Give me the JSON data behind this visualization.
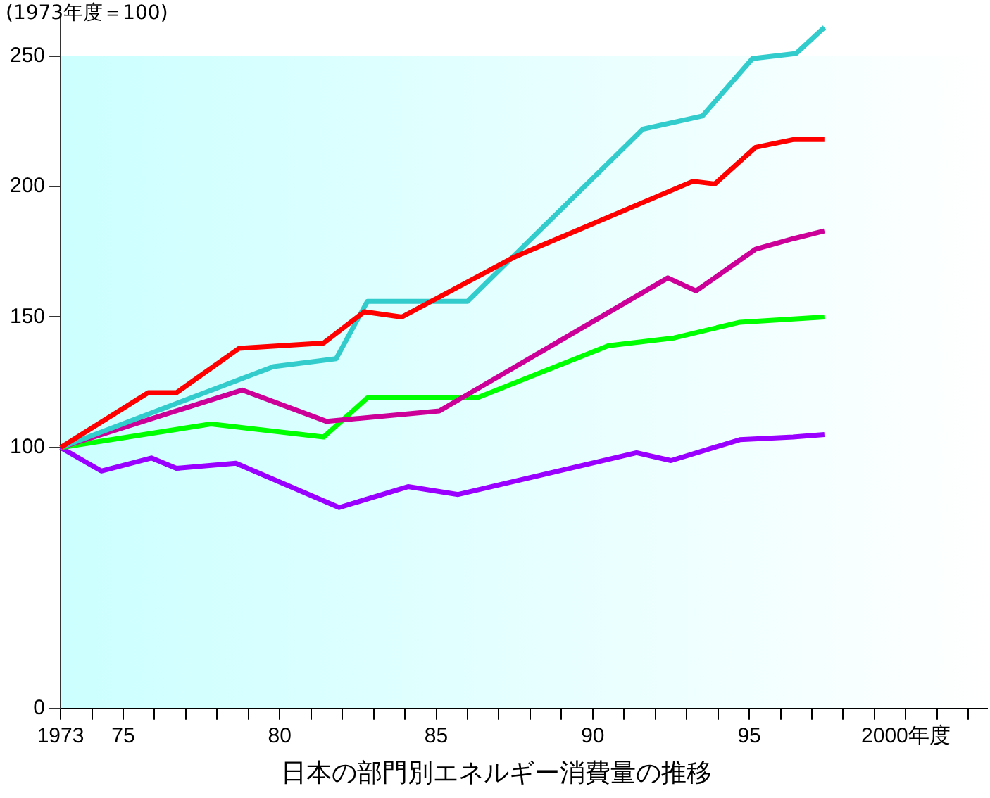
{
  "chart_data": {
    "type": "line",
    "title": "日本の部門別エネルギー消費量の推移",
    "ylabel": "(1973年度＝100)",
    "xlim": [
      1973,
      2002.6
    ],
    "ylim": [
      0,
      265
    ],
    "xticks": [
      {
        "value": 1973,
        "label": "1973"
      },
      {
        "value": 1974,
        "label": null
      },
      {
        "value": 1975,
        "label": "75"
      },
      {
        "value": 1976,
        "label": null
      },
      {
        "value": 1977,
        "label": null
      },
      {
        "value": 1978,
        "label": null
      },
      {
        "value": 1979,
        "label": null
      },
      {
        "value": 1980,
        "label": "80"
      },
      {
        "value": 1981,
        "label": null
      },
      {
        "value": 1982,
        "label": null
      },
      {
        "value": 1983,
        "label": null
      },
      {
        "value": 1984,
        "label": null
      },
      {
        "value": 1985,
        "label": "85"
      },
      {
        "value": 1986,
        "label": null
      },
      {
        "value": 1987,
        "label": null
      },
      {
        "value": 1988,
        "label": null
      },
      {
        "value": 1989,
        "label": null
      },
      {
        "value": 1990,
        "label": "90"
      },
      {
        "value": 1991,
        "label": null
      },
      {
        "value": 1992,
        "label": null
      },
      {
        "value": 1993,
        "label": null
      },
      {
        "value": 1994,
        "label": null
      },
      {
        "value": 1995,
        "label": "95"
      },
      {
        "value": 1996,
        "label": null
      },
      {
        "value": 1997,
        "label": null
      },
      {
        "value": 1998,
        "label": null
      },
      {
        "value": 1999,
        "label": null
      },
      {
        "value": 2000,
        "label": "2000年度"
      },
      {
        "value": 2001,
        "label": null
      },
      {
        "value": 2002,
        "label": null
      }
    ],
    "yticks": [
      0,
      100,
      150,
      200,
      250
    ],
    "grid": false,
    "legend": false,
    "marker": "none",
    "line_style": "solid",
    "series": [
      {
        "color": "#ff0000",
        "x": [
          1973,
          1975.8,
          1976.7,
          1978.7,
          1981.4,
          1982.7,
          1983.9,
          1987.5,
          1993.2,
          1993.9,
          1995.2,
          1996.4,
          1997.4
        ],
        "values": [
          100,
          121,
          121,
          138,
          140,
          152,
          150,
          173,
          202,
          201,
          215,
          218,
          218
        ]
      },
      {
        "color": "#33cccc",
        "x": [
          1973,
          1979.8,
          1981.8,
          1982.8,
          1986.0,
          1991.6,
          1993.5,
          1995.1,
          1996.5,
          1997.4
        ],
        "values": [
          100,
          131,
          134,
          156,
          156,
          222,
          227,
          249,
          251,
          261
        ]
      },
      {
        "color": "#cc0099",
        "x": [
          1973,
          1978.8,
          1981.5,
          1985.1,
          1992.4,
          1993.3,
          1995.2,
          1996.4,
          1997.4
        ],
        "values": [
          100,
          122,
          110,
          114,
          165,
          160,
          176,
          180,
          183
        ]
      },
      {
        "color": "#00ff00",
        "x": [
          1973,
          1977.8,
          1981.4,
          1982.8,
          1986.3,
          1990.5,
          1992.6,
          1994.7,
          1997.4
        ],
        "values": [
          100,
          109,
          104,
          119,
          119,
          139,
          142,
          148,
          150
        ]
      },
      {
        "color": "#9900ff",
        "x": [
          1973,
          1974.3,
          1975.9,
          1976.7,
          1978.6,
          1981.9,
          1984.1,
          1985.7,
          1991.4,
          1992.5,
          1994.7,
          1996.4,
          1997.4
        ],
        "values": [
          100,
          91,
          96,
          92,
          94,
          77,
          85,
          82,
          98,
          95,
          103,
          104,
          105
        ]
      }
    ]
  }
}
